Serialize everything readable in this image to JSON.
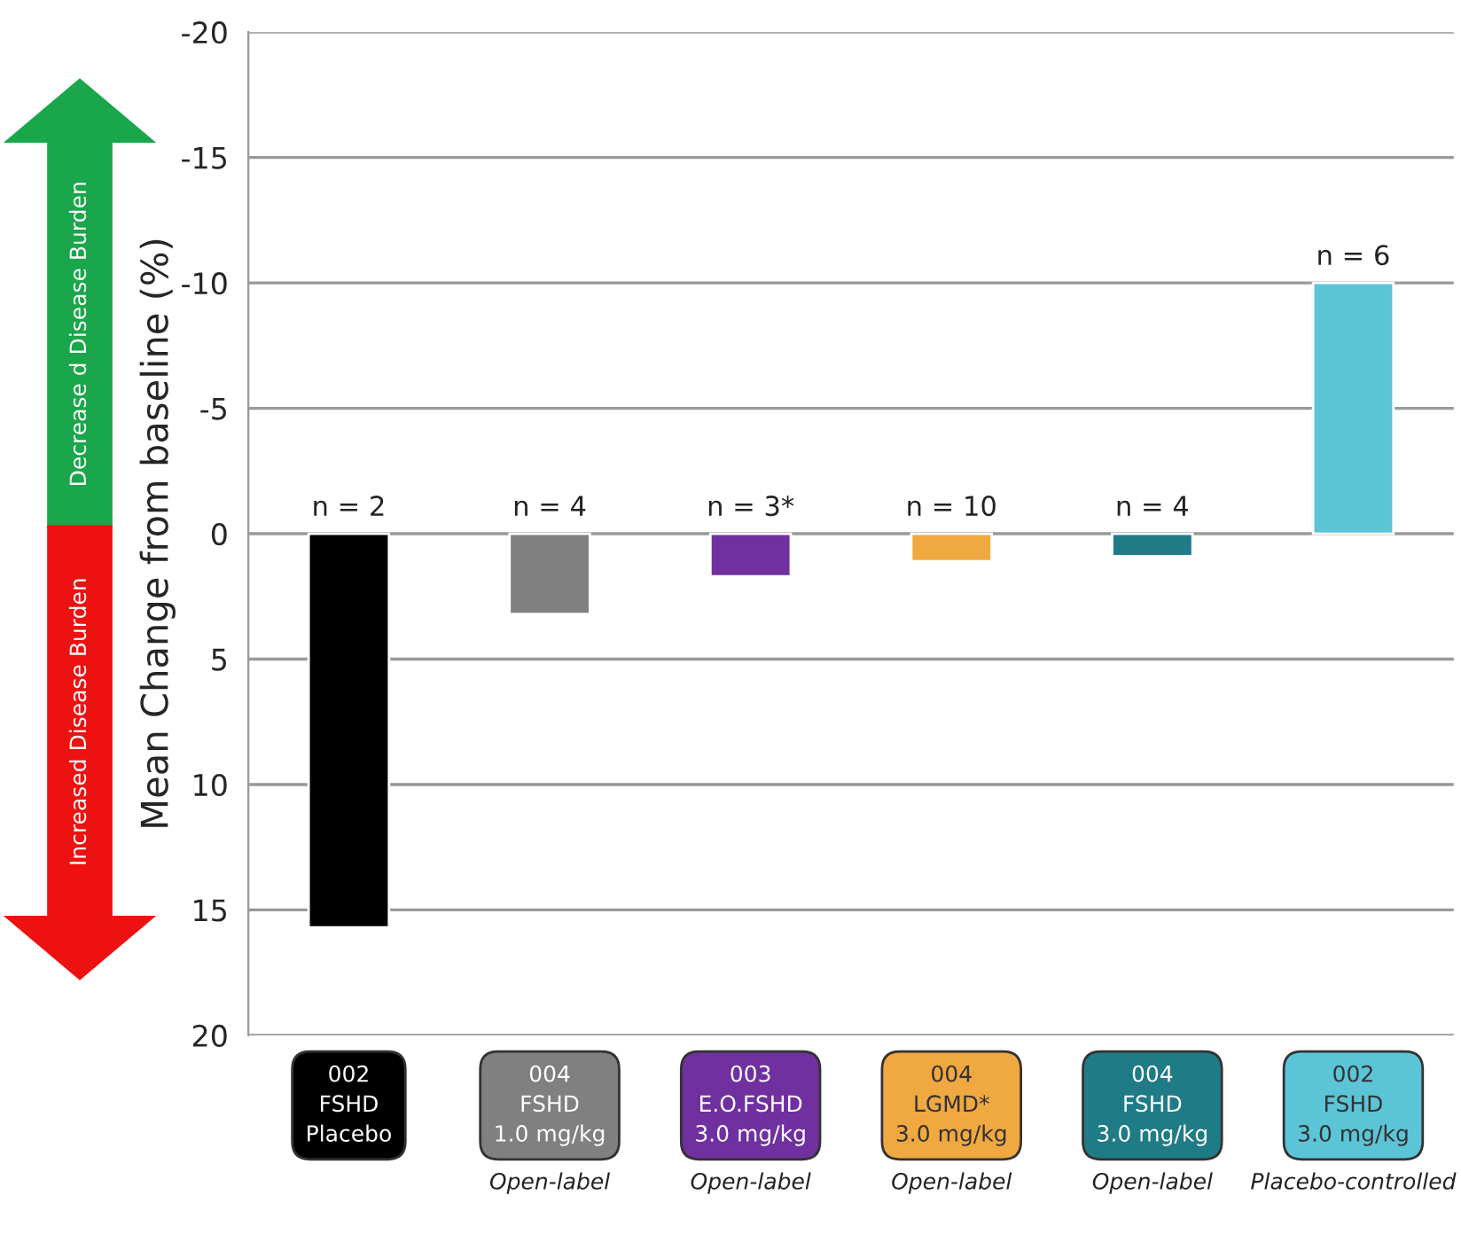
{
  "chart_data": {
    "type": "bar",
    "ylabel": "Mean Change from baseline (%)",
    "categories": [
      "002\nFSHD\nPlacebo",
      "004\nFSHD\n1.0 mg/kg",
      "003\nE.O.FSHD\n3.0 mg/kg",
      "004\nLGMD*\n3.0 mg/kg",
      "004\nFSHD\n3.0 mg/kg",
      "002\nFSHD\n3.0 mg/kg"
    ],
    "values": [
      15.7,
      3.2,
      1.7,
      1.1,
      0.9,
      -10.0
    ],
    "colors": [
      "#000000",
      "#808080",
      "#7030a0",
      "#f0a840",
      "#1f7b86",
      "#5bc4d6"
    ],
    "ylim": [
      20,
      -20
    ],
    "yticks": [
      -20,
      -15,
      -10,
      -5,
      0,
      5,
      10,
      15,
      20
    ],
    "grid": "y",
    "annotations": [
      "Decrease d Disease Burden",
      "Increased Disease Burden",
      {
        "text": "n = 2",
        "x": "002\nFSHD\nPlacebo",
        "y": 0
      },
      {
        "text": "n = 4",
        "x": "004\nFSHD\n1.0 mg/kg",
        "y": 0
      },
      {
        "text": "n = 3*",
        "x": "003\nE.O.FSHD\n3.0 mg/kg",
        "y": 0
      },
      {
        "text": "n = 10",
        "x": "004\nLGMD*\n3.0 mg/kg",
        "y": 0
      },
      {
        "text": "n = 4",
        "x": "004\nFSHD\n3.0 mg/kg",
        "y": 0
      },
      {
        "text": "n = 6",
        "x": "002\nFSHD\n3.0 mg/kg",
        "y": -10.0
      },
      "Open-label",
      "Open-label",
      "Open-label",
      "Open-label",
      "Placebo-controlled"
    ]
  }
}
